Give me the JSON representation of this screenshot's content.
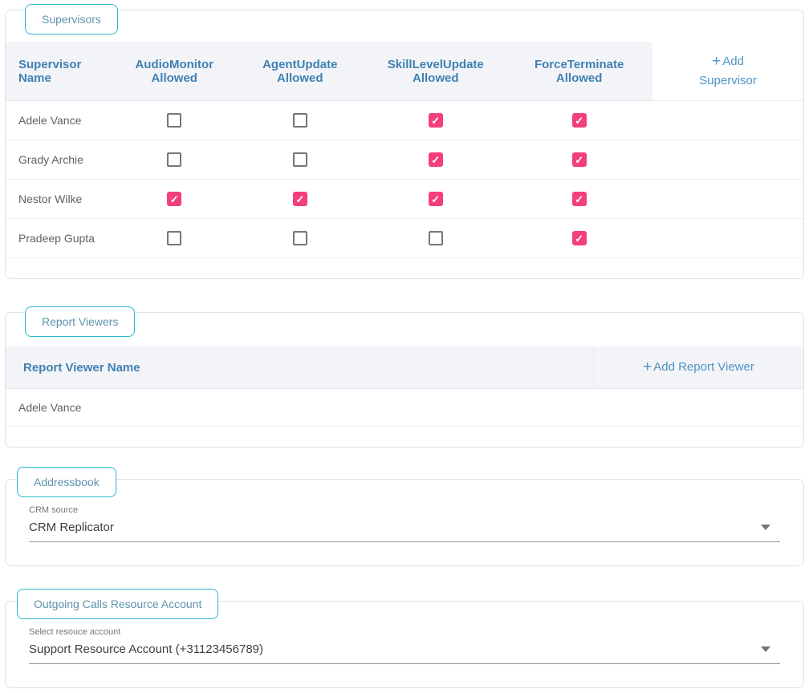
{
  "colors": {
    "accent_teal": "#2ab6ce",
    "header_blue": "#3f81b2",
    "link_blue": "#4e93c6",
    "check_pink": "#f43f7d",
    "header_row_bg": "#f3f4f8",
    "row_text": "#5f6164"
  },
  "supervisors": {
    "tab_label": "Supervisors",
    "columns": [
      "Supervisor Name",
      "AudioMonitor Allowed",
      "AgentUpdate Allowed",
      "SkillLevelUpdate Allowed",
      "ForceTerminate Allowed"
    ],
    "column_keys": [
      "audiomonitor",
      "agentupdate",
      "skilllevelupdate",
      "forceterminate"
    ],
    "plus_icon": "+",
    "add_button_label": "Add Supervisor",
    "rows": [
      {
        "name": "Adele Vance",
        "checks": [
          false,
          false,
          true,
          true
        ]
      },
      {
        "name": "Grady Archie",
        "checks": [
          false,
          false,
          true,
          true
        ]
      },
      {
        "name": "Nestor Wilke",
        "checks": [
          true,
          true,
          true,
          true
        ]
      },
      {
        "name": "Pradeep Gupta",
        "checks": [
          false,
          false,
          false,
          true
        ]
      }
    ]
  },
  "report_viewers": {
    "tab_label": "Report Viewers",
    "column_header": "Report Viewer Name",
    "plus_icon": "+",
    "add_button_label": "Add Report Viewer",
    "rows": [
      {
        "name": "Adele Vance"
      }
    ]
  },
  "addressbook": {
    "tab_label": "Addressbook",
    "field_label": "CRM source",
    "field_value": "CRM Replicator"
  },
  "outgoing_calls": {
    "tab_label": "Outgoing Calls Resource Account",
    "field_label": "Select resouce account",
    "field_value": "Support Resource Account (+31123456789)"
  }
}
